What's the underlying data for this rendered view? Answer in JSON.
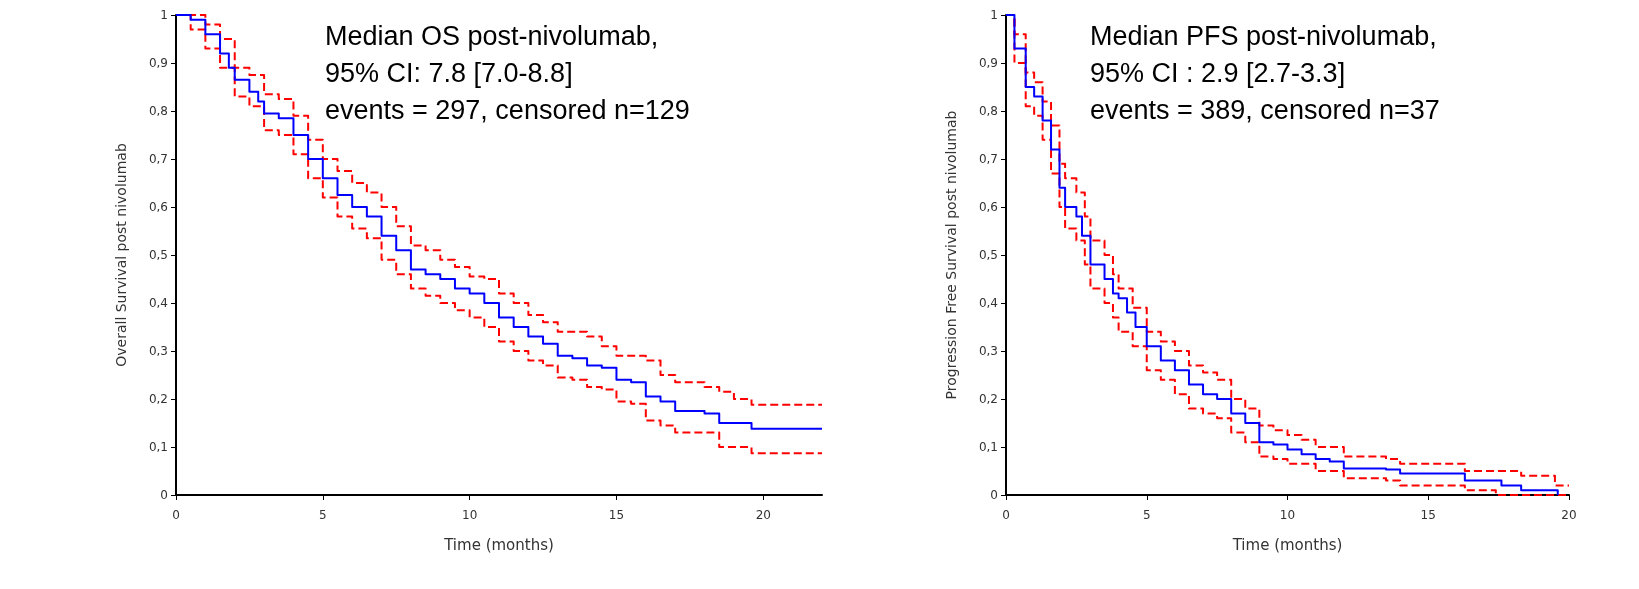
{
  "chart_data": [
    {
      "type": "step",
      "xlabel": "Time (months)",
      "ylabel": "Overall Survival post nivolumab",
      "annotations": [
        "Median OS post-nivolumab,",
        "95% CI: 7.8 [7.0-8.8]",
        "events = 297, censored n=129"
      ],
      "xlim": [
        0,
        22
      ],
      "xticks": [
        0,
        5,
        10,
        15,
        20
      ],
      "ylim": [
        0,
        1
      ],
      "yticks": [
        {
          "value": 0,
          "label": "0"
        },
        {
          "value": 0.1,
          "label": "0,1"
        },
        {
          "value": 0.2,
          "label": "0,2"
        },
        {
          "value": 0.3,
          "label": "0,3"
        },
        {
          "value": 0.4,
          "label": "0,4"
        },
        {
          "value": 0.5,
          "label": "0,5"
        },
        {
          "value": 0.6,
          "label": "0,6"
        },
        {
          "value": 0.7,
          "label": "0,7"
        },
        {
          "value": 0.8,
          "label": "0,8"
        },
        {
          "value": 0.9,
          "label": "0,9"
        },
        {
          "value": 1,
          "label": "1"
        }
      ],
      "marker": "none",
      "grid": false,
      "series": [
        {
          "color": "#ff0000",
          "line_style": "dashed",
          "x": [
            0,
            0.5,
            1,
            1.5,
            2,
            2.5,
            3,
            3.5,
            4,
            4.5,
            5,
            5.5,
            6,
            6.5,
            7,
            7.5,
            8,
            8.5,
            9,
            9.5,
            10,
            10.5,
            11,
            11.5,
            12,
            12.5,
            13,
            14,
            14.5,
            15,
            16,
            16.5,
            17,
            18,
            18.5,
            19,
            19.6,
            22
          ],
          "values": [
            1,
            1,
            0.98,
            0.95,
            0.89,
            0.875,
            0.835,
            0.825,
            0.79,
            0.74,
            0.7,
            0.675,
            0.65,
            0.63,
            0.6,
            0.56,
            0.52,
            0.51,
            0.49,
            0.475,
            0.455,
            0.45,
            0.42,
            0.4,
            0.375,
            0.36,
            0.34,
            0.33,
            0.31,
            0.29,
            0.28,
            0.25,
            0.235,
            0.225,
            0.215,
            0.2,
            0.188,
            0.188
          ]
        },
        {
          "color": "#ff0000",
          "line_style": "dashed",
          "x": [
            0,
            0.5,
            1,
            1.5,
            2,
            2.5,
            3,
            3.5,
            4,
            4.5,
            5,
            5.5,
            6,
            6.5,
            7,
            7.5,
            8,
            8.5,
            9,
            9.5,
            10,
            10.5,
            11,
            11.5,
            12,
            12.5,
            13,
            13.5,
            14,
            14.5,
            15,
            15.5,
            16,
            16.5,
            17,
            18,
            18.5,
            19.6,
            22
          ],
          "values": [
            1,
            0.97,
            0.93,
            0.89,
            0.83,
            0.81,
            0.76,
            0.75,
            0.71,
            0.66,
            0.62,
            0.58,
            0.555,
            0.535,
            0.49,
            0.46,
            0.43,
            0.415,
            0.4,
            0.385,
            0.37,
            0.35,
            0.32,
            0.3,
            0.28,
            0.27,
            0.245,
            0.24,
            0.225,
            0.22,
            0.195,
            0.19,
            0.155,
            0.145,
            0.13,
            0.13,
            0.1,
            0.087,
            0.087
          ]
        },
        {
          "color": "#0000ff",
          "line_style": "solid",
          "x": [
            0,
            0.5,
            1,
            1.5,
            1.8,
            2,
            2.5,
            2.8,
            3,
            3.5,
            4,
            4.5,
            5,
            5.5,
            6,
            6.5,
            7,
            7.5,
            8,
            8.5,
            9,
            9.5,
            10,
            10.5,
            11,
            11.5,
            12,
            12.5,
            13,
            13.5,
            14,
            14.5,
            15,
            15.5,
            16,
            16.5,
            17,
            18,
            18.5,
            19.6,
            22
          ],
          "values": [
            1,
            0.99,
            0.96,
            0.92,
            0.89,
            0.865,
            0.84,
            0.82,
            0.795,
            0.785,
            0.75,
            0.7,
            0.66,
            0.625,
            0.6,
            0.58,
            0.54,
            0.51,
            0.47,
            0.46,
            0.45,
            0.43,
            0.42,
            0.4,
            0.37,
            0.35,
            0.33,
            0.315,
            0.29,
            0.285,
            0.27,
            0.265,
            0.24,
            0.235,
            0.205,
            0.195,
            0.175,
            0.17,
            0.15,
            0.138,
            0.138
          ]
        }
      ]
    },
    {
      "type": "step",
      "xlabel": "Time (months)",
      "ylabel": "Progression Free Survival post nivolumab",
      "annotations": [
        "Median PFS post-nivolumab,",
        "95% CI : 2.9 [2.7-3.3]",
        "events = 389, censored n=37"
      ],
      "xlim": [
        0,
        20
      ],
      "xticks": [
        0,
        5,
        10,
        15,
        20
      ],
      "ylim": [
        0,
        1
      ],
      "yticks": [
        {
          "value": 0,
          "label": "0"
        },
        {
          "value": 0.1,
          "label": "0,1"
        },
        {
          "value": 0.2,
          "label": "0,2"
        },
        {
          "value": 0.3,
          "label": "0,3"
        },
        {
          "value": 0.4,
          "label": "0,4"
        },
        {
          "value": 0.5,
          "label": "0,5"
        },
        {
          "value": 0.6,
          "label": "0,6"
        },
        {
          "value": 0.7,
          "label": "0,7"
        },
        {
          "value": 0.8,
          "label": "0,8"
        },
        {
          "value": 0.9,
          "label": "0,9"
        },
        {
          "value": 1,
          "label": "1"
        }
      ],
      "marker": "none",
      "grid": false,
      "series": [
        {
          "color": "#ff0000",
          "line_style": "dashed",
          "x": [
            0,
            0.3,
            0.7,
            1,
            1.3,
            1.6,
            1.9,
            2.1,
            2.5,
            2.8,
            3,
            3.5,
            3.8,
            4,
            4.5,
            5,
            5.5,
            6,
            6.5,
            7,
            7.5,
            8,
            8.5,
            9,
            9.5,
            10,
            10.5,
            11,
            12,
            13.5,
            14,
            16.2,
            16.3,
            17.4,
            18.3,
            19.5,
            20
          ],
          "values": [
            1,
            0.96,
            0.88,
            0.86,
            0.82,
            0.77,
            0.69,
            0.66,
            0.63,
            0.58,
            0.53,
            0.5,
            0.46,
            0.43,
            0.39,
            0.34,
            0.32,
            0.3,
            0.27,
            0.255,
            0.24,
            0.2,
            0.18,
            0.145,
            0.135,
            0.125,
            0.115,
            0.1,
            0.08,
            0.075,
            0.065,
            0.065,
            0.05,
            0.05,
            0.04,
            0.02,
            0.02
          ]
        },
        {
          "color": "#ff0000",
          "line_style": "dashed",
          "x": [
            0,
            0.3,
            0.7,
            1,
            1.3,
            1.6,
            1.9,
            2.1,
            2.5,
            2.8,
            3,
            3.5,
            3.8,
            4,
            4.5,
            5,
            5.5,
            6,
            6.5,
            7,
            7.5,
            8,
            8.5,
            9,
            9.5,
            10,
            11,
            12,
            13.5,
            14,
            16.2,
            16.3,
            17.4,
            20
          ],
          "values": [
            1,
            0.9,
            0.81,
            0.79,
            0.74,
            0.67,
            0.6,
            0.555,
            0.53,
            0.48,
            0.43,
            0.4,
            0.37,
            0.34,
            0.31,
            0.26,
            0.24,
            0.21,
            0.18,
            0.17,
            0.16,
            0.13,
            0.11,
            0.08,
            0.075,
            0.065,
            0.05,
            0.035,
            0.03,
            0.02,
            0.02,
            0.01,
            0,
            0
          ]
        },
        {
          "color": "#0000ff",
          "line_style": "solid",
          "x": [
            0,
            0.3,
            0.7,
            1,
            1.3,
            1.6,
            1.9,
            2.1,
            2.5,
            2.7,
            3,
            3.5,
            3.8,
            4,
            4.3,
            4.6,
            5,
            5.5,
            6,
            6.5,
            7,
            7.5,
            8,
            8.5,
            9,
            9.5,
            10,
            10.5,
            11,
            11.5,
            12,
            13.5,
            14,
            16.2,
            16.3,
            17.4,
            17.6,
            18.3,
            19.5,
            19.6
          ],
          "values": [
            1,
            0.93,
            0.85,
            0.83,
            0.78,
            0.72,
            0.64,
            0.6,
            0.58,
            0.54,
            0.48,
            0.45,
            0.42,
            0.41,
            0.38,
            0.35,
            0.31,
            0.28,
            0.26,
            0.23,
            0.21,
            0.2,
            0.17,
            0.15,
            0.11,
            0.105,
            0.095,
            0.085,
            0.075,
            0.07,
            0.055,
            0.053,
            0.045,
            0.045,
            0.03,
            0.03,
            0.02,
            0.01,
            0.01,
            0
          ]
        }
      ]
    }
  ]
}
